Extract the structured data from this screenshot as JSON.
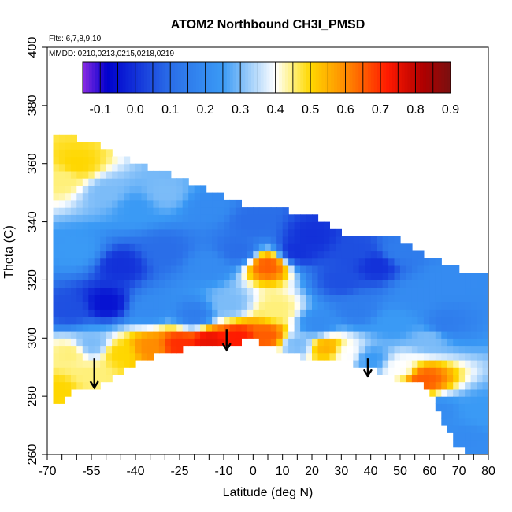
{
  "chart_data": {
    "type": "heatmap",
    "title": "ATOM2 Northbound CH3I_PMSD",
    "flights_note": "Flts: 6,7,8,9,10",
    "dates_note": "MMDD: 0210,0213,0215,0218,0219",
    "xlabel": "Latitude (deg N)",
    "ylabel": "Theta (C)",
    "xlim": [
      -70,
      80
    ],
    "ylim": [
      260,
      400
    ],
    "x_ticks": [
      -70,
      -55,
      -40,
      -25,
      -10,
      0,
      10,
      20,
      30,
      40,
      50,
      60,
      70,
      80
    ],
    "x_minor_ticks": [
      -65,
      -60,
      -50,
      -45,
      -35,
      -30,
      -20,
      -15,
      -5,
      5,
      15,
      25,
      35,
      45,
      55,
      65,
      75
    ],
    "y_ticks": [
      260,
      280,
      300,
      320,
      340,
      360,
      380,
      400
    ],
    "colorbar": {
      "ticks": [
        -0.1,
        0.0,
        0.1,
        0.2,
        0.3,
        0.4,
        0.5,
        0.6,
        0.7,
        0.8,
        0.9
      ],
      "range": [
        -0.15,
        0.9
      ],
      "colors": [
        "#8a2be2",
        "#0000cd",
        "#2a6ee8",
        "#3a9af5",
        "#ffffff",
        "#fff07a",
        "#ffd700",
        "#ff8c00",
        "#ff1a00",
        "#b00000",
        "#7a1010"
      ],
      "stops": [
        -0.15,
        -0.08,
        0.1,
        0.25,
        0.4,
        0.45,
        0.5,
        0.6,
        0.72,
        0.82,
        0.9
      ]
    },
    "upper_boundary": [
      [
        -68,
        370
      ],
      [
        -55,
        368
      ],
      [
        -40,
        360
      ],
      [
        -25,
        355
      ],
      [
        -10,
        349
      ],
      [
        0,
        345
      ],
      [
        10,
        344
      ],
      [
        20,
        342
      ],
      [
        30,
        336
      ],
      [
        40,
        336
      ],
      [
        50,
        334
      ],
      [
        60,
        328
      ],
      [
        70,
        324
      ],
      [
        72,
        322
      ]
    ],
    "lower_boundary": [
      [
        -68,
        276
      ],
      [
        -60,
        283
      ],
      [
        -50,
        284
      ],
      [
        -40,
        292
      ],
      [
        -25,
        296
      ],
      [
        -15,
        298
      ],
      [
        0,
        299
      ],
      [
        5,
        298
      ],
      [
        10,
        295
      ],
      [
        20,
        293
      ],
      [
        30,
        292
      ],
      [
        40,
        290
      ],
      [
        50,
        285
      ],
      [
        55,
        285
      ],
      [
        60,
        282
      ],
      [
        65,
        270
      ],
      [
        70,
        262
      ],
      [
        75,
        260
      ],
      [
        80,
        260
      ]
    ],
    "field": [
      {
        "lat": -65,
        "theta": 355,
        "value": 0.45
      },
      {
        "lat": -60,
        "theta": 360,
        "value": 0.5
      },
      {
        "lat": -50,
        "theta": 350,
        "value": 0.3
      },
      {
        "lat": -40,
        "theta": 345,
        "value": 0.25
      },
      {
        "lat": -30,
        "theta": 350,
        "value": 0.3
      },
      {
        "lat": -15,
        "theta": 345,
        "value": 0.2
      },
      {
        "lat": 0,
        "theta": 340,
        "value": 0.1
      },
      {
        "lat": 20,
        "theta": 335,
        "value": 0.0
      },
      {
        "lat": 35,
        "theta": 330,
        "value": 0.05
      },
      {
        "lat": 50,
        "theta": 330,
        "value": 0.15
      },
      {
        "lat": 65,
        "theta": 320,
        "value": 0.2
      },
      {
        "lat": -60,
        "theta": 330,
        "value": 0.25
      },
      {
        "lat": -45,
        "theta": 325,
        "value": 0.0
      },
      {
        "lat": -30,
        "theta": 330,
        "value": 0.1
      },
      {
        "lat": -15,
        "theta": 325,
        "value": 0.2
      },
      {
        "lat": -5,
        "theta": 330,
        "value": 0.1
      },
      {
        "lat": 5,
        "theta": 325,
        "value": 0.65
      },
      {
        "lat": 15,
        "theta": 330,
        "value": 0.0
      },
      {
        "lat": 30,
        "theta": 320,
        "value": 0.05
      },
      {
        "lat": 42,
        "theta": 325,
        "value": 0.0
      },
      {
        "lat": 55,
        "theta": 315,
        "value": 0.2
      },
      {
        "lat": 65,
        "theta": 305,
        "value": 0.15
      },
      {
        "lat": -62,
        "theta": 310,
        "value": 0.05
      },
      {
        "lat": -50,
        "theta": 312,
        "value": -0.05
      },
      {
        "lat": -35,
        "theta": 310,
        "value": 0.2
      },
      {
        "lat": -20,
        "theta": 308,
        "value": 0.15
      },
      {
        "lat": -8,
        "theta": 312,
        "value": 0.3
      },
      {
        "lat": 8,
        "theta": 310,
        "value": 0.45
      },
      {
        "lat": 22,
        "theta": 305,
        "value": 0.2
      },
      {
        "lat": 35,
        "theta": 310,
        "value": 0.15
      },
      {
        "lat": 48,
        "theta": 305,
        "value": 0.25
      },
      {
        "lat": 60,
        "theta": 300,
        "value": 0.3
      },
      {
        "lat": -62,
        "theta": 295,
        "value": 0.45
      },
      {
        "lat": -55,
        "theta": 298,
        "value": 0.3
      },
      {
        "lat": -45,
        "theta": 295,
        "value": 0.5
      },
      {
        "lat": -35,
        "theta": 297,
        "value": 0.6
      },
      {
        "lat": -25,
        "theta": 298,
        "value": 0.7
      },
      {
        "lat": -15,
        "theta": 299,
        "value": 0.75
      },
      {
        "lat": -5,
        "theta": 300,
        "value": 0.72
      },
      {
        "lat": 5,
        "theta": 301,
        "value": 0.65
      },
      {
        "lat": 15,
        "theta": 298,
        "value": 0.3
      },
      {
        "lat": 25,
        "theta": 297,
        "value": 0.55
      },
      {
        "lat": 32,
        "theta": 295,
        "value": 0.4
      },
      {
        "lat": 40,
        "theta": 293,
        "value": 0.25
      },
      {
        "lat": 50,
        "theta": 290,
        "value": 0.4
      },
      {
        "lat": 58,
        "theta": 286,
        "value": 0.65
      },
      {
        "lat": -66,
        "theta": 282,
        "value": 0.5
      },
      {
        "lat": -55,
        "theta": 287,
        "value": 0.45
      },
      {
        "lat": 62,
        "theta": 275,
        "value": 0.2
      },
      {
        "lat": 72,
        "theta": 265,
        "value": 0.2
      },
      {
        "lat": 78,
        "theta": 275,
        "value": 0.25
      }
    ],
    "arrows": [
      {
        "lat": -54,
        "theta_top": 293,
        "theta_tip": 283
      },
      {
        "lat": -9,
        "theta_top": 303,
        "theta_tip": 296
      },
      {
        "lat": 39,
        "theta_top": 293,
        "theta_tip": 287
      }
    ]
  }
}
